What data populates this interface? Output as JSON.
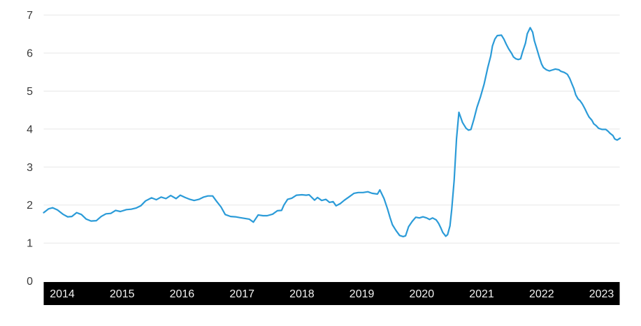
{
  "chart_data": {
    "type": "line",
    "title": "",
    "legend": "none",
    "grid": "horizontal",
    "y_axis": {
      "ticks": [
        0,
        1,
        2,
        3,
        4,
        5,
        6,
        7
      ],
      "min": 0,
      "max": 7
    },
    "x_axis": {
      "tick_labels": [
        "2014",
        "2015",
        "2016",
        "2017",
        "2018",
        "2019",
        "2020",
        "2021",
        "2022",
        "2023"
      ],
      "min": 2014.0,
      "max": 2023.62
    },
    "series": [
      {
        "name": "series-1",
        "points": [
          [
            2014.0,
            1.8
          ],
          [
            2014.08,
            1.9
          ],
          [
            2014.15,
            1.93
          ],
          [
            2014.23,
            1.87
          ],
          [
            2014.32,
            1.76
          ],
          [
            2014.4,
            1.69
          ],
          [
            2014.47,
            1.7
          ],
          [
            2014.55,
            1.8
          ],
          [
            2014.63,
            1.75
          ],
          [
            2014.71,
            1.63
          ],
          [
            2014.79,
            1.58
          ],
          [
            2014.88,
            1.59
          ],
          [
            2014.96,
            1.7
          ],
          [
            2015.04,
            1.77
          ],
          [
            2015.12,
            1.78
          ],
          [
            2015.2,
            1.86
          ],
          [
            2015.28,
            1.83
          ],
          [
            2015.38,
            1.88
          ],
          [
            2015.46,
            1.89
          ],
          [
            2015.54,
            1.92
          ],
          [
            2015.62,
            1.98
          ],
          [
            2015.7,
            2.11
          ],
          [
            2015.8,
            2.19
          ],
          [
            2015.88,
            2.14
          ],
          [
            2015.96,
            2.21
          ],
          [
            2016.04,
            2.17
          ],
          [
            2016.12,
            2.25
          ],
          [
            2016.21,
            2.17
          ],
          [
            2016.28,
            2.26
          ],
          [
            2016.36,
            2.2
          ],
          [
            2016.44,
            2.15
          ],
          [
            2016.51,
            2.12
          ],
          [
            2016.59,
            2.15
          ],
          [
            2016.67,
            2.21
          ],
          [
            2016.74,
            2.24
          ],
          [
            2016.82,
            2.24
          ],
          [
            2016.88,
            2.11
          ],
          [
            2016.96,
            1.95
          ],
          [
            2017.03,
            1.75
          ],
          [
            2017.12,
            1.7
          ],
          [
            2017.2,
            1.69
          ],
          [
            2017.27,
            1.67
          ],
          [
            2017.35,
            1.65
          ],
          [
            2017.43,
            1.63
          ],
          [
            2017.5,
            1.55
          ],
          [
            2017.58,
            1.74
          ],
          [
            2017.66,
            1.72
          ],
          [
            2017.73,
            1.72
          ],
          [
            2017.82,
            1.76
          ],
          [
            2017.9,
            1.85
          ],
          [
            2017.97,
            1.86
          ],
          [
            2018.01,
            2.0
          ],
          [
            2018.07,
            2.15
          ],
          [
            2018.14,
            2.18
          ],
          [
            2018.22,
            2.26
          ],
          [
            2018.31,
            2.27
          ],
          [
            2018.38,
            2.26
          ],
          [
            2018.43,
            2.27
          ],
          [
            2018.52,
            2.13
          ],
          [
            2018.57,
            2.2
          ],
          [
            2018.64,
            2.12
          ],
          [
            2018.71,
            2.15
          ],
          [
            2018.77,
            2.07
          ],
          [
            2018.83,
            2.09
          ],
          [
            2018.88,
            1.98
          ],
          [
            2018.95,
            2.04
          ],
          [
            2019.02,
            2.13
          ],
          [
            2019.1,
            2.22
          ],
          [
            2019.18,
            2.31
          ],
          [
            2019.25,
            2.33
          ],
          [
            2019.33,
            2.33
          ],
          [
            2019.41,
            2.35
          ],
          [
            2019.48,
            2.31
          ],
          [
            2019.57,
            2.29
          ],
          [
            2019.61,
            2.4
          ],
          [
            2019.68,
            2.17
          ],
          [
            2019.74,
            1.89
          ],
          [
            2019.78,
            1.67
          ],
          [
            2019.82,
            1.48
          ],
          [
            2019.88,
            1.33
          ],
          [
            2019.94,
            1.2
          ],
          [
            2020.0,
            1.17
          ],
          [
            2020.04,
            1.19
          ],
          [
            2020.09,
            1.43
          ],
          [
            2020.15,
            1.57
          ],
          [
            2020.21,
            1.68
          ],
          [
            2020.27,
            1.66
          ],
          [
            2020.33,
            1.69
          ],
          [
            2020.39,
            1.66
          ],
          [
            2020.44,
            1.62
          ],
          [
            2020.49,
            1.66
          ],
          [
            2020.55,
            1.61
          ],
          [
            2020.59,
            1.52
          ],
          [
            2020.63,
            1.39
          ],
          [
            2020.66,
            1.28
          ],
          [
            2020.71,
            1.18
          ],
          [
            2020.74,
            1.22
          ],
          [
            2020.78,
            1.45
          ],
          [
            2020.81,
            1.9
          ],
          [
            2020.85,
            2.65
          ],
          [
            2020.89,
            3.75
          ],
          [
            2020.93,
            4.44
          ],
          [
            2020.99,
            4.17
          ],
          [
            2021.05,
            4.02
          ],
          [
            2021.09,
            3.97
          ],
          [
            2021.13,
            3.99
          ],
          [
            2021.18,
            4.26
          ],
          [
            2021.23,
            4.57
          ],
          [
            2021.29,
            4.85
          ],
          [
            2021.35,
            5.18
          ],
          [
            2021.41,
            5.61
          ],
          [
            2021.46,
            5.92
          ],
          [
            2021.49,
            6.19
          ],
          [
            2021.53,
            6.37
          ],
          [
            2021.57,
            6.46
          ],
          [
            2021.64,
            6.47
          ],
          [
            2021.68,
            6.37
          ],
          [
            2021.72,
            6.23
          ],
          [
            2021.76,
            6.11
          ],
          [
            2021.81,
            5.99
          ],
          [
            2021.84,
            5.9
          ],
          [
            2021.88,
            5.85
          ],
          [
            2021.92,
            5.83
          ],
          [
            2021.96,
            5.85
          ],
          [
            2021.99,
            6.02
          ],
          [
            2022.04,
            6.26
          ],
          [
            2022.07,
            6.51
          ],
          [
            2022.12,
            6.67
          ],
          [
            2022.16,
            6.55
          ],
          [
            2022.19,
            6.32
          ],
          [
            2022.23,
            6.11
          ],
          [
            2022.27,
            5.9
          ],
          [
            2022.31,
            5.71
          ],
          [
            2022.34,
            5.62
          ],
          [
            2022.39,
            5.56
          ],
          [
            2022.44,
            5.53
          ],
          [
            2022.48,
            5.55
          ],
          [
            2022.54,
            5.58
          ],
          [
            2022.6,
            5.56
          ],
          [
            2022.63,
            5.52
          ],
          [
            2022.69,
            5.49
          ],
          [
            2022.74,
            5.44
          ],
          [
            2022.78,
            5.33
          ],
          [
            2022.81,
            5.21
          ],
          [
            2022.85,
            5.06
          ],
          [
            2022.88,
            4.9
          ],
          [
            2022.92,
            4.79
          ],
          [
            2022.95,
            4.75
          ],
          [
            2022.99,
            4.66
          ],
          [
            2023.03,
            4.54
          ],
          [
            2023.07,
            4.41
          ],
          [
            2023.1,
            4.32
          ],
          [
            2023.15,
            4.23
          ],
          [
            2023.18,
            4.14
          ],
          [
            2023.22,
            4.09
          ],
          [
            2023.26,
            4.02
          ],
          [
            2023.32,
            3.99
          ],
          [
            2023.38,
            3.99
          ],
          [
            2023.42,
            3.94
          ],
          [
            2023.45,
            3.89
          ],
          [
            2023.5,
            3.83
          ],
          [
            2023.53,
            3.74
          ],
          [
            2023.57,
            3.71
          ],
          [
            2023.62,
            3.76
          ]
        ]
      }
    ]
  },
  "colors": {
    "background": "#ffffff",
    "line": "#2b9bd8",
    "grid": "#e7e7e7",
    "y_tick_text": "#3a3a3a",
    "x_axis_band": "#000000",
    "x_tick_text": "#f2f2f2"
  }
}
